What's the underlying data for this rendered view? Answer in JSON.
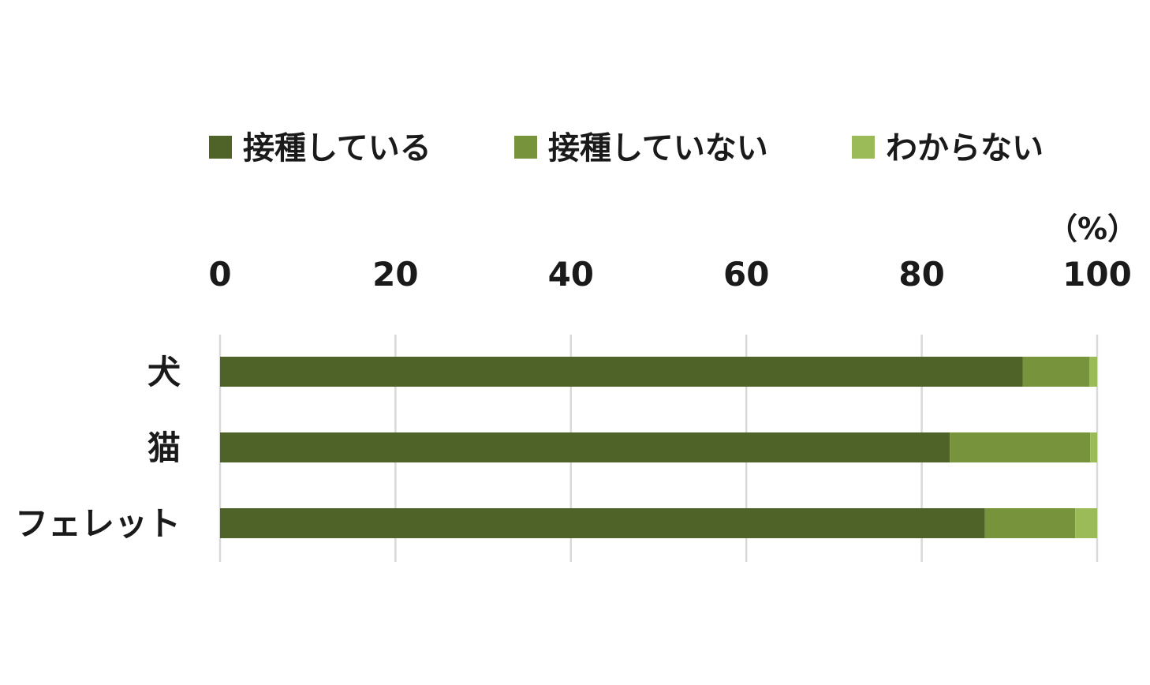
{
  "chart_data": {
    "type": "bar",
    "orientation": "horizontal",
    "stacked": true,
    "categories": [
      "犬",
      "猫",
      "フェレット"
    ],
    "series": [
      {
        "name": "接種している",
        "values": [
          91.5,
          83.2,
          87.2
        ],
        "color": "#4f6228"
      },
      {
        "name": "接種していない",
        "values": [
          7.6,
          16.0,
          10.3
        ],
        "color": "#77933c"
      },
      {
        "name": "わからない",
        "values": [
          0.9,
          0.8,
          2.5
        ],
        "color": "#9bbb59"
      }
    ],
    "xlim": [
      0,
      100
    ],
    "x_ticks": [
      "0",
      "20",
      "40",
      "60",
      "80",
      "100"
    ],
    "unit_label": "（%）",
    "xaxis_position": "top",
    "grid": true,
    "legend_position": "top"
  }
}
